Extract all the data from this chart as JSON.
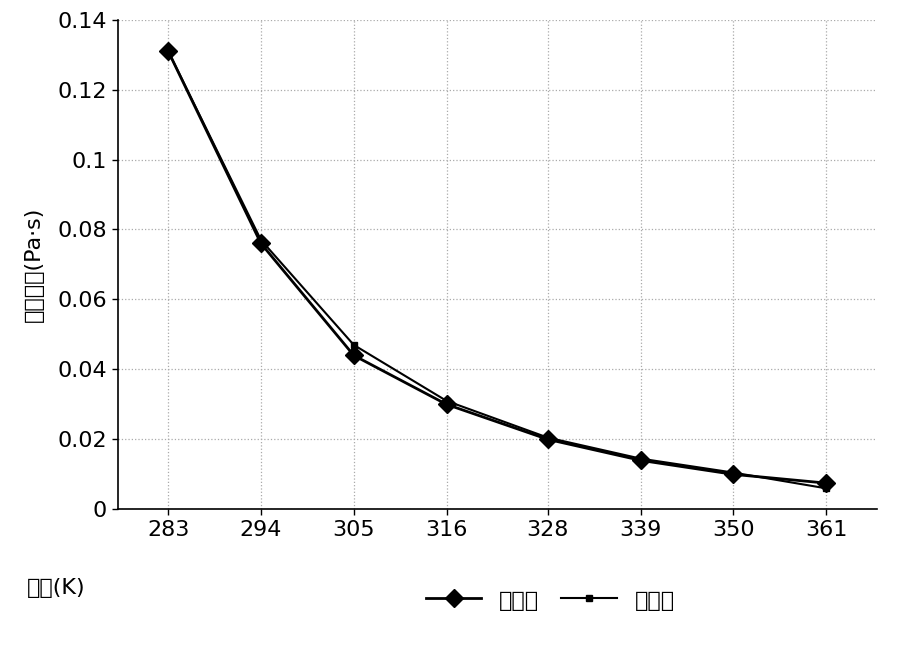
{
  "temp_x": [
    283,
    294,
    305,
    316,
    328,
    339,
    350,
    361
  ],
  "actual_y": [
    0.131,
    0.076,
    0.044,
    0.03,
    0.02,
    0.014,
    0.01,
    0.0075
  ],
  "fitted_y": [
    0.131,
    0.077,
    0.047,
    0.031,
    0.0205,
    0.0145,
    0.0105,
    0.006
  ],
  "ylim": [
    0,
    0.14
  ],
  "yticks": [
    0,
    0.02,
    0.04,
    0.06,
    0.08,
    0.1,
    0.12,
    0.14
  ],
  "ytick_labels": [
    "0",
    "0.02",
    "0.04",
    "0.06",
    "0.08",
    "0.1",
    "0.12",
    "0.14"
  ],
  "xticks": [
    283,
    294,
    305,
    316,
    328,
    339,
    350,
    361
  ],
  "ylabel": "动力粘度(Pa·s)",
  "xlabel": "温度(K)",
  "legend_actual": "实际值",
  "legend_fitted": "拟合值",
  "line_color": "#000000",
  "bg_color": "#ffffff",
  "grid_color": "#aaaaaa",
  "label_fontsize": 16,
  "tick_fontsize": 16,
  "legend_fontsize": 16
}
